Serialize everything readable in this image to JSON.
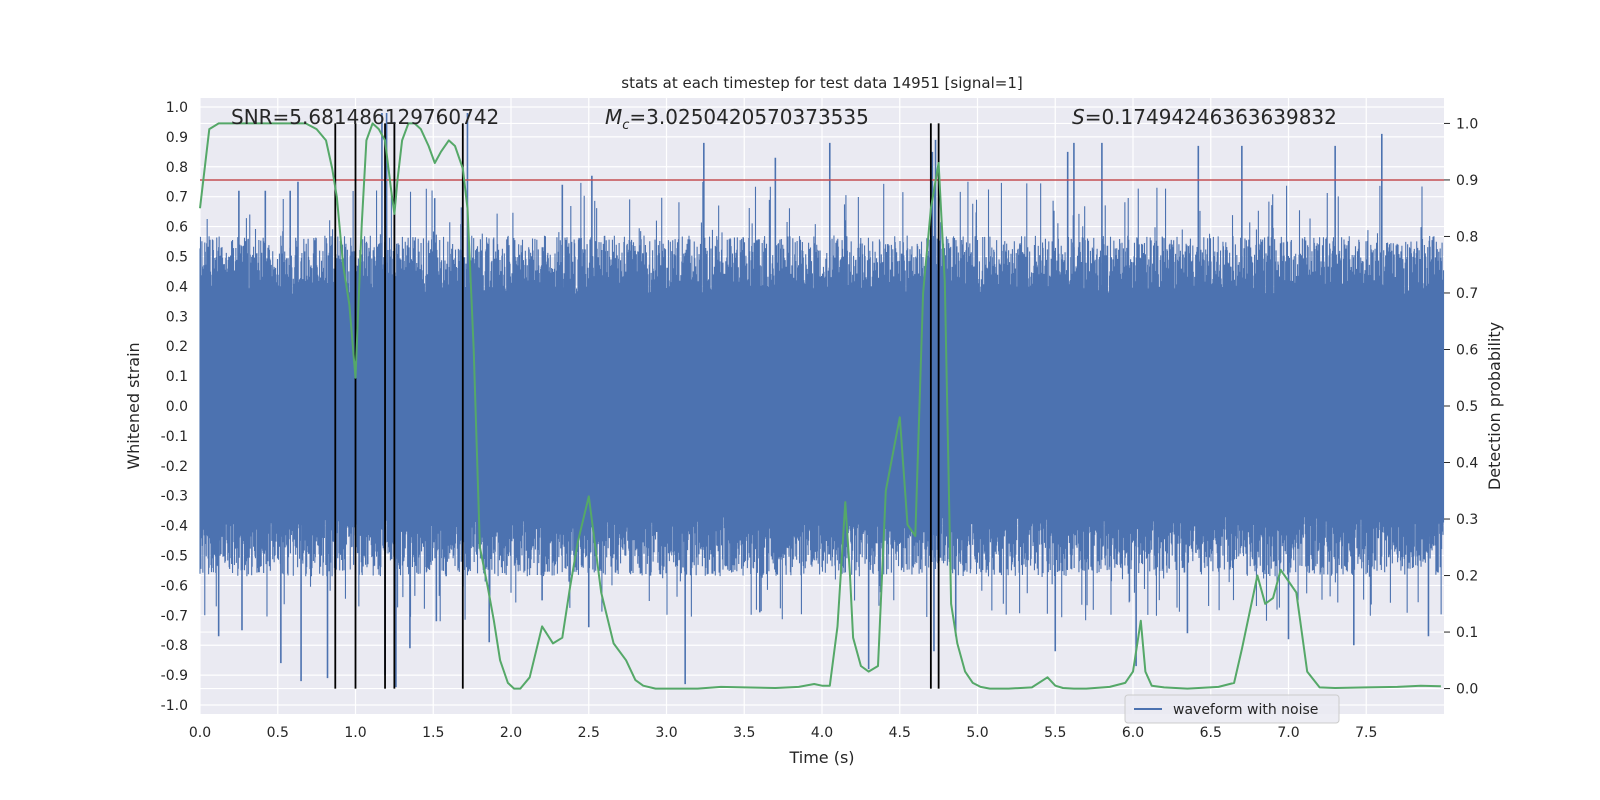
{
  "chart_data": {
    "type": "line",
    "title": "stats at each timestep for test data 14951 [signal=1]",
    "annotations": {
      "snr": "SNR=5.681486129760742",
      "mc_symbol": "M",
      "mc_sub": "c",
      "mc_value": "=3.0250420570373535",
      "s_symbol": "S",
      "s_value": "=0.17494246363639832"
    },
    "xlabel": "Time (s)",
    "ylabel_left": "Whitened strain",
    "ylabel_right": "Detection probability",
    "xlim": [
      0.0,
      8.0
    ],
    "ylim_left": [
      -1.03,
      1.03
    ],
    "ylim_right": [
      -0.045,
      1.045
    ],
    "x_ticks": [
      "0.0",
      "0.5",
      "1.0",
      "1.5",
      "2.0",
      "2.5",
      "3.0",
      "3.5",
      "4.0",
      "4.5",
      "5.0",
      "5.5",
      "6.0",
      "6.5",
      "7.0",
      "7.5"
    ],
    "y_ticks_left": [
      "1.0",
      "0.9",
      "0.8",
      "0.7",
      "0.6",
      "0.5",
      "0.4",
      "0.3",
      "0.2",
      "0.1",
      "0.0",
      "-0.1",
      "-0.2",
      "-0.3",
      "-0.4",
      "-0.5",
      "-0.6",
      "-0.7",
      "-0.8",
      "-0.9",
      "-1.0"
    ],
    "y_ticks_right": [
      "1.0",
      "0.9",
      "0.8",
      "0.7",
      "0.6",
      "0.5",
      "0.4",
      "0.3",
      "0.2",
      "0.1",
      "0.0"
    ],
    "threshold": 0.9,
    "detection_markers": [
      0.87,
      1.0,
      1.19,
      1.25,
      1.69,
      4.7,
      4.75
    ],
    "series": [
      {
        "name": "waveform with noise",
        "color": "#4c72b0",
        "band": {
          "typical_min": -0.45,
          "typical_max": 0.45
        },
        "peak_times": [
          0.25,
          0.42,
          0.58,
          0.63,
          1.17,
          1.2,
          1.25,
          1.72,
          2.33,
          2.52,
          3.24,
          3.7,
          4.05,
          4.71,
          4.73,
          5.58,
          5.62,
          5.8,
          6.42,
          6.7,
          7.3,
          7.6
        ],
        "peak_values": [
          0.72,
          0.72,
          0.72,
          0.75,
          0.98,
          0.98,
          0.95,
          0.98,
          0.74,
          0.77,
          0.88,
          0.83,
          0.88,
          0.85,
          0.89,
          0.85,
          0.88,
          0.88,
          0.87,
          0.87,
          0.87,
          0.91
        ],
        "trough_times": [
          0.12,
          0.27,
          0.52,
          0.65,
          0.82,
          1.19,
          1.26,
          1.35,
          1.52,
          1.86,
          2.2,
          2.5,
          3.12,
          3.6,
          4.3,
          4.72,
          4.86,
          5.5,
          6.02,
          6.35,
          7.0,
          7.42,
          7.9
        ],
        "trough_values": [
          -0.77,
          -0.75,
          -0.86,
          -0.92,
          -0.91,
          -0.9,
          -0.94,
          -0.81,
          -0.72,
          -0.79,
          -0.65,
          -0.74,
          -0.93,
          -0.69,
          -0.88,
          -0.82,
          -0.77,
          -0.82,
          -0.87,
          -0.76,
          -0.78,
          -0.8,
          -0.77
        ]
      },
      {
        "name": "detection probability",
        "color": "#55a868",
        "x": [
          0.0,
          0.06,
          0.12,
          0.2,
          0.3,
          0.4,
          0.5,
          0.6,
          0.68,
          0.75,
          0.81,
          0.85,
          0.88,
          0.92,
          0.96,
          1.0,
          1.04,
          1.07,
          1.11,
          1.15,
          1.19,
          1.23,
          1.25,
          1.27,
          1.3,
          1.34,
          1.38,
          1.42,
          1.47,
          1.51,
          1.55,
          1.6,
          1.64,
          1.69,
          1.72,
          1.76,
          1.8,
          1.85,
          1.89,
          1.93,
          1.98,
          2.02,
          2.06,
          2.12,
          2.2,
          2.27,
          2.33,
          2.38,
          2.43,
          2.5,
          2.58,
          2.66,
          2.74,
          2.8,
          2.85,
          2.93,
          3.0,
          3.2,
          3.35,
          3.5,
          3.7,
          3.85,
          3.95,
          4.0,
          4.05,
          4.1,
          4.15,
          4.18,
          4.2,
          4.25,
          4.3,
          4.36,
          4.41,
          4.5,
          4.55,
          4.6,
          4.65,
          4.7,
          4.75,
          4.79,
          4.83,
          4.87,
          4.92,
          4.97,
          5.02,
          5.08,
          5.2,
          5.35,
          5.45,
          5.5,
          5.55,
          5.62,
          5.7,
          5.85,
          5.95,
          6.0,
          6.05,
          6.08,
          6.12,
          6.2,
          6.35,
          6.55,
          6.65,
          6.7,
          6.8,
          6.85,
          6.9,
          6.95,
          7.0,
          7.05,
          7.12,
          7.2,
          7.3,
          7.5,
          7.7,
          7.85,
          7.98
        ],
        "values": [
          0.85,
          0.99,
          1.0,
          1.0,
          1.0,
          1.0,
          1.0,
          1.0,
          1.0,
          0.99,
          0.97,
          0.92,
          0.87,
          0.75,
          0.68,
          0.55,
          0.82,
          0.97,
          1.0,
          0.99,
          0.97,
          0.88,
          0.84,
          0.9,
          0.97,
          1.0,
          1.0,
          0.99,
          0.96,
          0.93,
          0.95,
          0.97,
          0.96,
          0.92,
          0.85,
          0.6,
          0.25,
          0.18,
          0.12,
          0.05,
          0.01,
          0.0,
          0.0,
          0.02,
          0.11,
          0.08,
          0.09,
          0.18,
          0.26,
          0.34,
          0.17,
          0.08,
          0.05,
          0.015,
          0.005,
          0.0,
          0.0,
          0.0,
          0.003,
          0.002,
          0.001,
          0.003,
          0.008,
          0.005,
          0.005,
          0.11,
          0.33,
          0.2,
          0.09,
          0.04,
          0.03,
          0.04,
          0.35,
          0.48,
          0.29,
          0.27,
          0.7,
          0.85,
          0.93,
          0.72,
          0.15,
          0.08,
          0.03,
          0.01,
          0.003,
          0.0,
          0.0,
          0.002,
          0.02,
          0.005,
          0.001,
          0.0,
          0.0,
          0.003,
          0.01,
          0.03,
          0.12,
          0.03,
          0.005,
          0.002,
          0.0,
          0.003,
          0.01,
          0.07,
          0.2,
          0.15,
          0.16,
          0.21,
          0.19,
          0.17,
          0.03,
          0.002,
          0.001,
          0.002,
          0.003,
          0.005,
          0.004
        ]
      }
    ],
    "legend": {
      "entries": [
        "waveform with noise"
      ],
      "position": "lower-right"
    },
    "grid": true
  }
}
